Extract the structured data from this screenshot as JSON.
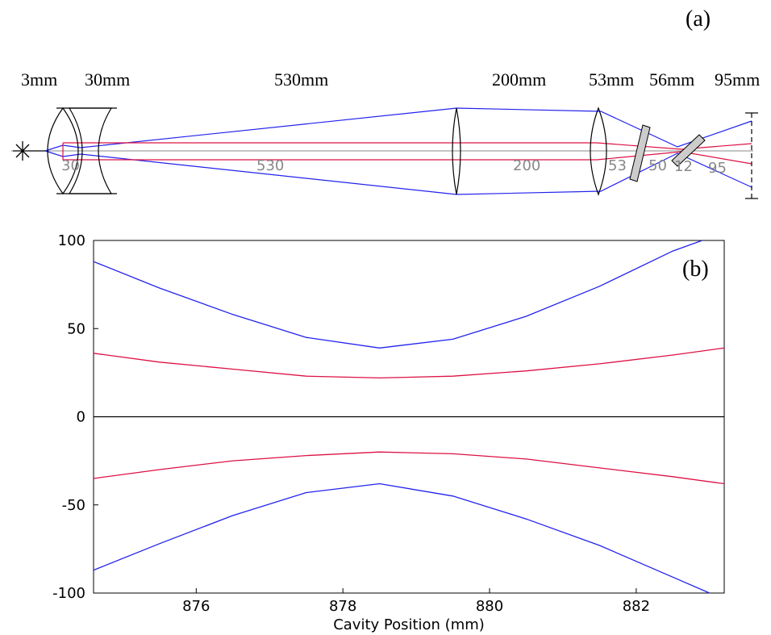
{
  "panel_a": {
    "label": "(a)",
    "top_labels": [
      "3mm",
      "30mm",
      "530mm",
      "200mm",
      "53mm",
      "56mm",
      "95mm"
    ],
    "spacing_labels": [
      "30",
      "530",
      "200",
      "53",
      "50",
      "12",
      "95"
    ],
    "colors": {
      "outer_beam": "#2222ee",
      "inner_beam": "#dd1144",
      "axis": "#888888",
      "optics": "#000000",
      "spacing_text": "#888888"
    }
  },
  "chart_data": {
    "type": "line",
    "panel_label": "(b)",
    "xlabel": "Cavity Position (mm)",
    "ylabel": "",
    "xlim": [
      874.6,
      883.2
    ],
    "ylim": [
      -100,
      100
    ],
    "xticks": [
      876,
      878,
      880,
      882
    ],
    "yticks": [
      100,
      50,
      0,
      -50,
      -100
    ],
    "zero_line": true,
    "series": [
      {
        "key": "blue_upper",
        "color": "#2222ee",
        "x": [
          874.6,
          875.5,
          876.5,
          877.5,
          878.5,
          879.5,
          880.5,
          881.5,
          882.5,
          882.9
        ],
        "y": [
          88,
          73,
          58,
          45,
          39,
          44,
          57,
          74,
          94,
          100
        ]
      },
      {
        "key": "red_upper",
        "color": "#dd1144",
        "x": [
          874.6,
          875.5,
          876.5,
          877.5,
          878.5,
          879.5,
          880.5,
          881.5,
          882.5,
          883.2
        ],
        "y": [
          36,
          31,
          27,
          23,
          22,
          23,
          26,
          30,
          35,
          39
        ]
      },
      {
        "key": "red_lower",
        "color": "#dd1144",
        "x": [
          874.6,
          875.5,
          876.5,
          877.5,
          878.5,
          879.5,
          880.5,
          881.5,
          882.5,
          883.2
        ],
        "y": [
          -35,
          -30,
          -25,
          -22,
          -20,
          -21,
          -24,
          -29,
          -34,
          -38
        ]
      },
      {
        "key": "blue_lower",
        "color": "#2222ee",
        "x": [
          874.6,
          875.5,
          876.5,
          877.5,
          878.5,
          879.5,
          880.5,
          881.5,
          882.5,
          883.0
        ],
        "y": [
          -87,
          -72,
          -56,
          -43,
          -38,
          -45,
          -58,
          -73,
          -91,
          -100
        ]
      }
    ]
  }
}
